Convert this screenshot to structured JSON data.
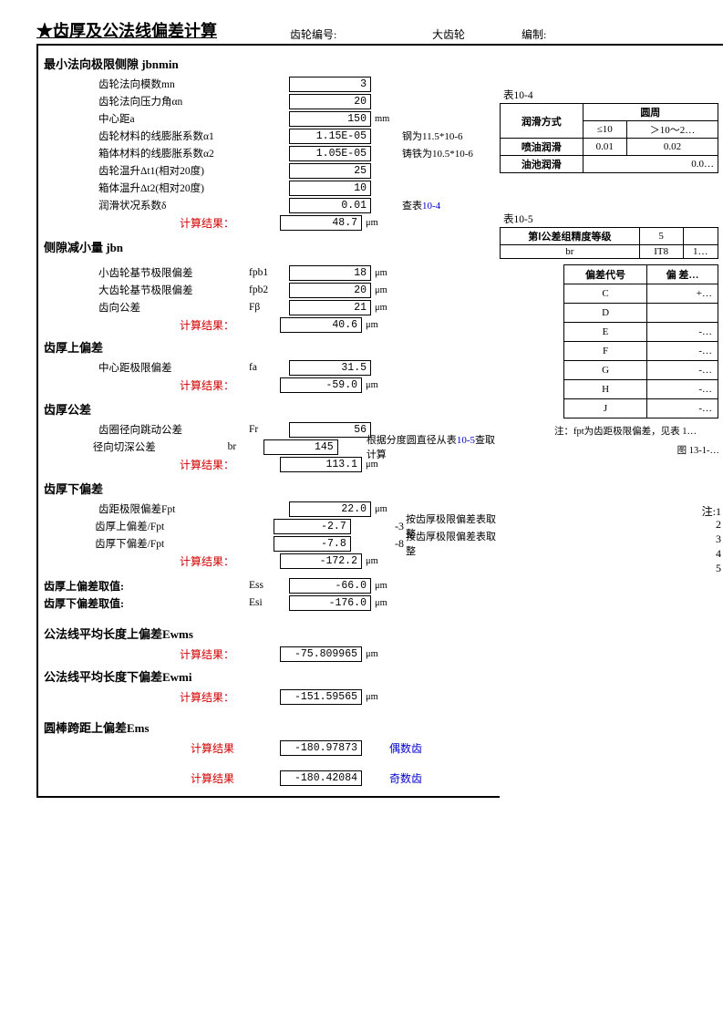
{
  "header": {
    "title": "★齿厚及公法线偏差计算",
    "gear_no_label": "齿轮编号:",
    "gear_no_value": "",
    "gear_type_label": "大齿轮",
    "author_label": "编制:",
    "author_value": ""
  },
  "s1": {
    "head": "最小法向极限侧隙 jbnmin",
    "rows": [
      {
        "label": "齿轮法向模数mn",
        "sym": "",
        "val": "3",
        "unit": "",
        "note": ""
      },
      {
        "label": "齿轮法向压力角αn",
        "sym": "",
        "val": "20",
        "unit": "",
        "note": ""
      },
      {
        "label": "中心距a",
        "sym": "",
        "val": "150",
        "unit": "mm",
        "note": ""
      },
      {
        "label": "齿轮材料的线膨胀系数α1",
        "sym": "",
        "val": "1.15E-05",
        "unit": "",
        "note": "钢为11.5*10-6"
      },
      {
        "label": "箱体材料的线膨胀系数α2",
        "sym": "",
        "val": "1.05E-05",
        "unit": "",
        "note": "铸铁为10.5*10-6"
      },
      {
        "label": "齿轮温升Δt1(相对20度)",
        "sym": "",
        "val": "25",
        "unit": "",
        "note": ""
      },
      {
        "label": "箱体温升Δt2(相对20度)",
        "sym": "",
        "val": "10",
        "unit": "",
        "note": ""
      },
      {
        "label": "润滑状况系数δ",
        "sym": "",
        "val": "0.01",
        "unit": "",
        "note": "查表",
        "notelink": "10-4"
      }
    ],
    "result_label": "计算结果：",
    "result_val": "48.7",
    "result_unit": "μm"
  },
  "s2": {
    "head": "侧隙减小量 jbn",
    "rows": [
      {
        "label": "小齿轮基节极限偏差",
        "sym": "fpb1",
        "val": "18",
        "unit": "μm"
      },
      {
        "label": "大齿轮基节极限偏差",
        "sym": "fpb2",
        "val": "20",
        "unit": "μm"
      },
      {
        "label": "齿向公差",
        "sym": "Fβ",
        "val": "21",
        "unit": "μm"
      }
    ],
    "result_label": "计算结果：",
    "result_val": "40.6",
    "result_unit": "μm"
  },
  "s3": {
    "head": "齿厚上偏差",
    "rows": [
      {
        "label": "中心距极限偏差",
        "sym": "fa",
        "val": "31.5",
        "unit": ""
      }
    ],
    "result_label": "计算结果：",
    "result_val": "-59.0",
    "result_unit": "μm"
  },
  "s4": {
    "head": "齿厚公差",
    "rows": [
      {
        "label": "齿圈径向跳动公差",
        "sym": "Fr",
        "val": "56",
        "unit": ""
      },
      {
        "label": "径向切深公差",
        "sym": "br",
        "val": "145",
        "unit": "",
        "note": "根据分度圆直径从表",
        "notelink": "10-5",
        "note2": "查取计算"
      }
    ],
    "result_label": "计算结果：",
    "result_val": "113.1",
    "result_unit": "μm"
  },
  "s5": {
    "head": "齿厚下偏差",
    "rows": [
      {
        "label": "齿距极限偏差Fpt",
        "sym": "",
        "val": "22.0",
        "unit": "μm",
        "extra": "",
        "note": ""
      },
      {
        "label": "齿厚上偏差/Fpt",
        "sym": "",
        "val": "-2.7",
        "unit": "",
        "extra": "-3",
        "note": "按齿厚极限偏差表取整"
      },
      {
        "label": "齿厚下偏差/Fpt",
        "sym": "",
        "val": "-7.8",
        "unit": "",
        "extra": "-8",
        "note": "按齿厚极限偏差表取整"
      }
    ],
    "result_label": "计算结果：",
    "result_val": "-172.2",
    "result_unit": "μm"
  },
  "s6": {
    "rows": [
      {
        "head": "齿厚上偏差取值:",
        "sym": "Ess",
        "val": "-66.0",
        "unit": "μm"
      },
      {
        "head": "齿厚下偏差取值:",
        "sym": "Esi",
        "val": "-176.0",
        "unit": "μm"
      }
    ]
  },
  "s7": {
    "head": "公法线平均长度上偏差Ewms",
    "result_label": "计算结果：",
    "result_val": "-75.809965",
    "result_unit": "μm"
  },
  "s8": {
    "head": "公法线平均长度下偏差Ewmi",
    "result_label": "计算结果：",
    "result_val": "-151.59565",
    "result_unit": "μm"
  },
  "s9": {
    "head": "圆棒跨距上偏差Ems",
    "r1_label": "计算结果",
    "r1_val": "-180.97873",
    "r1_tag": "偶数齿",
    "r2_label": "计算结果",
    "r2_val": "-180.42084",
    "r2_tag": "奇数齿"
  },
  "tbl104": {
    "caption": "表10-4",
    "h1": "润滑方式",
    "h2": "圆周",
    "cols": [
      "≤10",
      "＞10～2…"
    ],
    "rows": [
      {
        "label": "喷油润滑",
        "c1": "0.01",
        "c2": "0.02"
      },
      {
        "label": "油池润滑",
        "c1": "",
        "c2": "0.0…"
      }
    ]
  },
  "tbl105": {
    "caption": "表10-5",
    "h1": "第Ⅰ公差组精度等级",
    "h1v": "5",
    "h2": "br",
    "h2v": "IT8",
    "h2v2": "1…"
  },
  "tbl2": {
    "h1": "偏差代号",
    "h2": "偏 差…",
    "rows": [
      {
        "c": "C",
        "v": "+…"
      },
      {
        "c": "D",
        "v": ""
      },
      {
        "c": "E",
        "v": "-…"
      },
      {
        "c": "F",
        "v": "-…"
      },
      {
        "c": "G",
        "v": "-…"
      },
      {
        "c": "H",
        "v": "-…"
      },
      {
        "c": "J",
        "v": "-…"
      }
    ],
    "note": "注：fpt为齿距极限偏差，见表 1…",
    "fig": "图 13-1-…"
  },
  "right_notes": {
    "head": "注:1",
    "items": [
      "2",
      "3",
      "4",
      "5"
    ]
  }
}
